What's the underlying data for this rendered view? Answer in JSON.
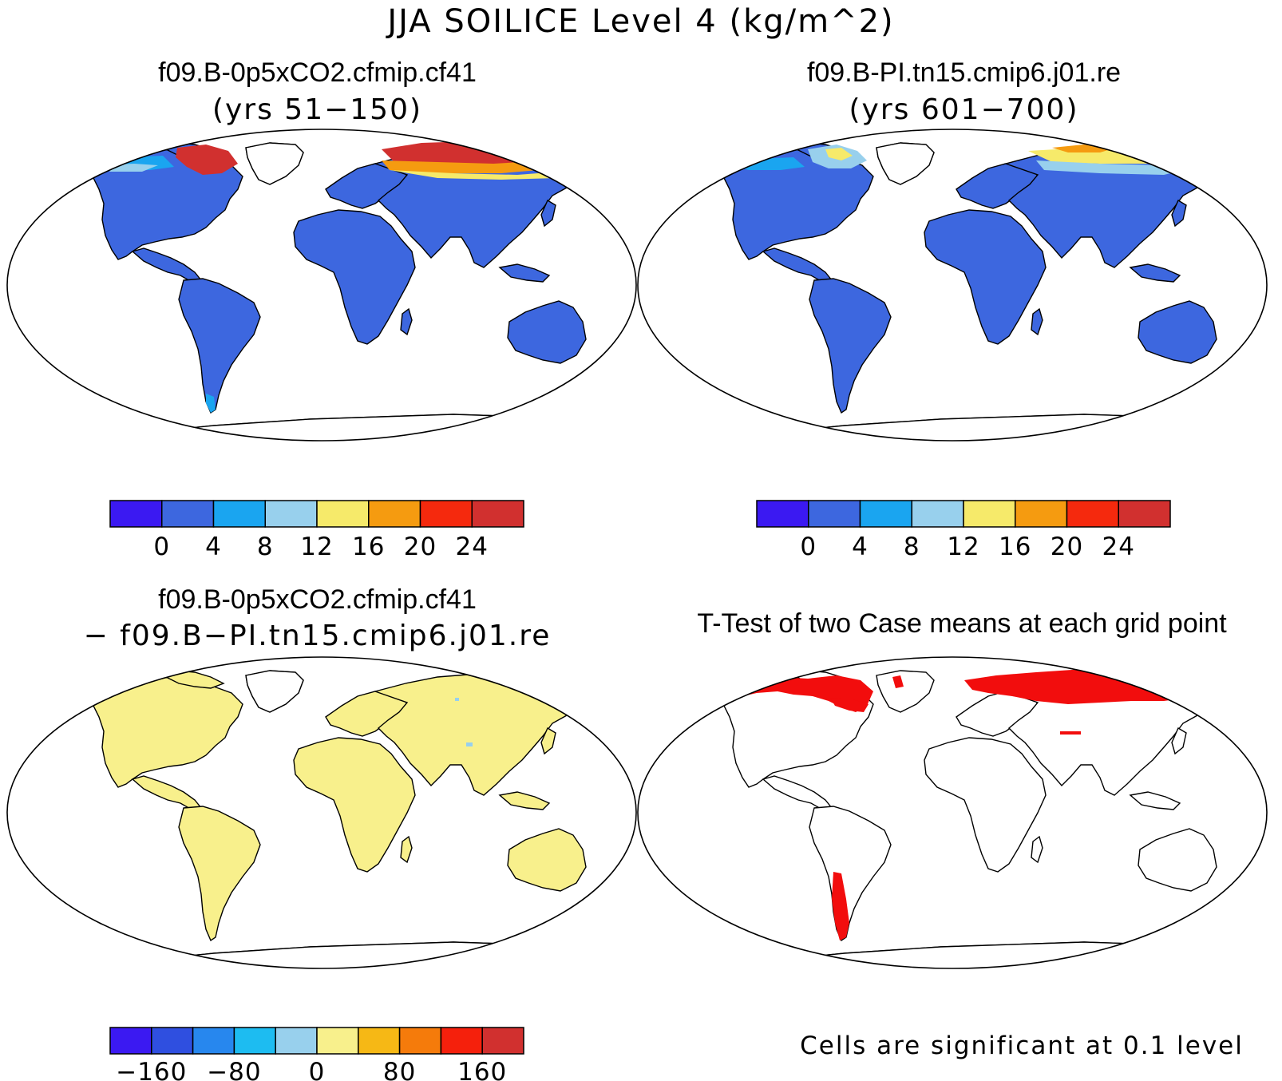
{
  "main_title": "JJA SOILICE Level 4 (kg/m^2)",
  "panels": [
    {
      "title": "f09.B-0p5xCO2.cfmip.cf41",
      "subtitle": "(yrs 51−150)",
      "colorbar": {
        "colors": [
          "#3b19f2",
          "#3d67df",
          "#1aa5f0",
          "#98d0ed",
          "#f6ea6a",
          "#f59b10",
          "#f5290d",
          "#d1302f"
        ],
        "labels": [
          "0",
          "4",
          "8",
          "12",
          "16",
          "20",
          "24"
        ]
      }
    },
    {
      "title": "f09.B-PI.tn15.cmip6.j01.re",
      "subtitle": "(yrs 601−700)",
      "colorbar": {
        "colors": [
          "#3b19f2",
          "#3d67df",
          "#1aa5f0",
          "#98d0ed",
          "#f6ea6a",
          "#f59b10",
          "#f5290d",
          "#d1302f"
        ],
        "labels": [
          "0",
          "4",
          "8",
          "12",
          "16",
          "20",
          "24"
        ]
      }
    },
    {
      "title": "f09.B-0p5xCO2.cfmip.cf41",
      "subtitle": "− f09.B−PI.tn15.cmip6.j01.re",
      "colorbar": {
        "colors": [
          "#3b19f2",
          "#2f4fe0",
          "#2787ee",
          "#1dbcf1",
          "#98d0ed",
          "#f8f08c",
          "#f6b815",
          "#f57b0b",
          "#f5200c",
          "#d1302f"
        ],
        "labels": [
          "−160",
          "−80",
          "0",
          "80",
          "160"
        ]
      }
    },
    {
      "title": "T-Test of two Case means at each grid point",
      "footnote": "Cells are significant at 0.1 level"
    }
  ],
  "map_fill_colors": {
    "panel1_land": "#3d67df",
    "panel2_land": "#3d67df",
    "panel3_land": "#f8f08c",
    "significance": "#f20d0d",
    "high_warm": "#d1302f",
    "orange": "#f59b10",
    "yellow": "#f6ea6a",
    "light_blue": "#98d0ed",
    "cyan": "#1aa5f0"
  }
}
